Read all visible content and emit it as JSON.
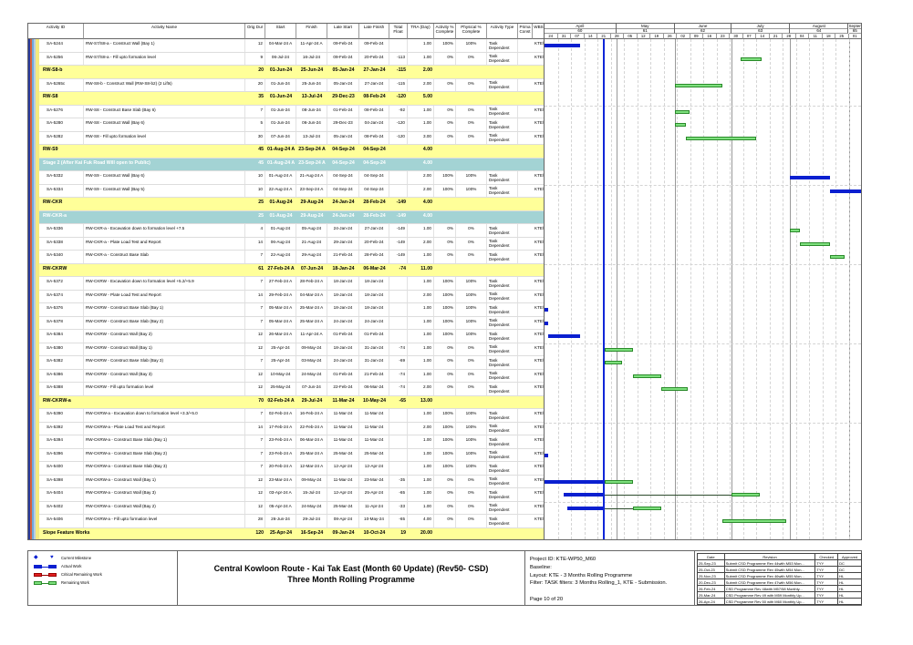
{
  "columns": [
    "Activity ID",
    "Activity Name",
    "Orig Dur",
    "Start",
    "Finish",
    "Late Start",
    "Late Finish",
    "Total Float",
    "TRA (Day)",
    "Activity % Complete",
    "Physical % Complete",
    "Activity Type",
    "Prima Const",
    "WBS"
  ],
  "rows": [
    {
      "kind": "task",
      "id": "SA-5244",
      "name": "RW-S7/S8-a - Construct Wall (Bay 1)",
      "dur": "12",
      "start": "04-Mar-24 A",
      "finish": "11-Apr-24 A",
      "ls": "09-Feb-24",
      "lf": "09-Feb-24",
      "tf": "",
      "tra": "1.00",
      "act": "100%",
      "phys": "100%",
      "type": "Task Dependent",
      "wbs": "KTE\\"
    },
    {
      "kind": "task",
      "id": "SA-5256",
      "name": "RW-S7/S8-a - Fill upto formation level",
      "dur": "9",
      "start": "06-Jul-24",
      "finish": "16-Jul-24",
      "ls": "09-Feb-24",
      "lf": "20-Feb-24",
      "tf": "-113",
      "tra": "1.00",
      "act": "0%",
      "phys": "0%",
      "type": "Task Dependent",
      "wbs": "KTE\\"
    },
    {
      "kind": "grp",
      "id": "RW-S8-b",
      "dur": "20",
      "start": "01-Jun-24",
      "finish": "25-Jun-24",
      "ls": "05-Jan-24",
      "lf": "27-Jan-24",
      "tf": "-115",
      "tra": "2.00"
    },
    {
      "kind": "task",
      "id": "SA-5265c",
      "name": "RW-S8-b - Construct Wall (RW-S8-b2) (2 Lifts)",
      "dur": "20",
      "start": "01-Jun-24",
      "finish": "25-Jun-24",
      "ls": "05-Jan-24",
      "lf": "27-Jan-24",
      "tf": "-115",
      "tra": "2.00",
      "act": "0%",
      "phys": "0%",
      "type": "Task Dependent",
      "wbs": "KTE\\"
    },
    {
      "kind": "grp",
      "id": "RW-S8",
      "dur": "35",
      "start": "01-Jun-24",
      "finish": "13-Jul-24",
      "ls": "29-Dec-23",
      "lf": "08-Feb-24",
      "tf": "-120",
      "tra": "5.00"
    },
    {
      "kind": "task",
      "id": "SA-5276",
      "name": "RW-S8 - Construct Base Slab (Bay 6)",
      "dur": "7",
      "start": "01-Jun-24",
      "finish": "08-Jun-24",
      "ls": "01-Feb-24",
      "lf": "08-Feb-24",
      "tf": "-92",
      "tra": "1.00",
      "act": "0%",
      "phys": "0%",
      "type": "Task Dependent",
      "wbs": "KTE\\"
    },
    {
      "kind": "task",
      "id": "SA-5280",
      "name": "RW-S8 - Construct Wall (Bay 6)",
      "dur": "5",
      "start": "01-Jun-24",
      "finish": "06-Jun-24",
      "ls": "29-Dec-23",
      "lf": "04-Jan-24",
      "tf": "-120",
      "tra": "1.00",
      "act": "0%",
      "phys": "0%",
      "type": "Task Dependent",
      "wbs": "KTE\\"
    },
    {
      "kind": "task",
      "id": "SA-5282",
      "name": "RW-S8 - Fill upto formation level",
      "dur": "30",
      "start": "07-Jun-24",
      "finish": "13-Jul-24",
      "ls": "05-Jan-24",
      "lf": "08-Feb-24",
      "tf": "-120",
      "tra": "3.00",
      "act": "0%",
      "phys": "0%",
      "type": "Task Dependent",
      "wbs": "KTE\\"
    },
    {
      "kind": "grp",
      "id": "RW-S9",
      "dur": "45",
      "start": "01-Aug-24 A",
      "finish": "23-Sep-24 A",
      "ls": "04-Sep-24",
      "lf": "04-Sep-24",
      "tf": "",
      "tra": "4.00"
    },
    {
      "kind": "teal",
      "id": "Stage 2 (After Kai Fuk Road Will open to Public)",
      "dur": "45",
      "start": "01-Aug-24 A",
      "finish": "23-Sep-24 A",
      "ls": "04-Sep-24",
      "lf": "04-Sep-24",
      "tf": "",
      "tra": "4.00"
    },
    {
      "kind": "task",
      "id": "SA-5332",
      "name": "RW-S9 - Construct Wall (Bay 6)",
      "dur": "10",
      "start": "01-Aug-24 A",
      "finish": "21-Aug-24 A",
      "ls": "04-Sep-24",
      "lf": "04-Sep-24",
      "tf": "",
      "tra": "2.00",
      "act": "100%",
      "phys": "100%",
      "type": "Task Dependent",
      "wbs": "KTE\\"
    },
    {
      "kind": "task",
      "id": "SA-5334",
      "name": "RW-S9 - Construct Wall (Bay 5)",
      "dur": "10",
      "start": "22-Aug-24 A",
      "finish": "23-Sep-24 A",
      "ls": "04-Sep-24",
      "lf": "04-Sep-24",
      "tf": "",
      "tra": "2.00",
      "act": "100%",
      "phys": "100%",
      "type": "Task Dependent",
      "wbs": "KTE\\"
    },
    {
      "kind": "grp",
      "id": "RW-CKR",
      "dur": "25",
      "start": "01-Aug-24",
      "finish": "29-Aug-24",
      "ls": "24-Jan-24",
      "lf": "28-Feb-24",
      "tf": "-149",
      "tra": "4.00"
    },
    {
      "kind": "teal",
      "id": "RW-CKR-a",
      "dur": "25",
      "start": "01-Aug-24",
      "finish": "29-Aug-24",
      "ls": "24-Jan-24",
      "lf": "28-Feb-24",
      "tf": "-149",
      "tra": "4.00"
    },
    {
      "kind": "task",
      "id": "SA-5336",
      "name": "RW-CKR-a - Excavation down to formation level +7.5",
      "dur": "4",
      "start": "01-Aug-24",
      "finish": "05-Aug-24",
      "ls": "24-Jan-24",
      "lf": "27-Jan-24",
      "tf": "-149",
      "tra": "1.00",
      "act": "0%",
      "phys": "0%",
      "type": "Task Dependent",
      "wbs": "KTE\\"
    },
    {
      "kind": "task",
      "id": "SA-5338",
      "name": "RW-CKR-a - Plate Load Test and Report",
      "dur": "14",
      "start": "06-Aug-24",
      "finish": "21-Aug-24",
      "ls": "29-Jan-24",
      "lf": "20-Feb-24",
      "tf": "-149",
      "tra": "2.00",
      "act": "0%",
      "phys": "0%",
      "type": "Task Dependent",
      "wbs": "KTE\\"
    },
    {
      "kind": "task",
      "id": "SA-5340",
      "name": "RW-CKR-a - Construct Base Slab",
      "dur": "7",
      "start": "22-Aug-24",
      "finish": "29-Aug-24",
      "ls": "21-Feb-24",
      "lf": "28-Feb-24",
      "tf": "-149",
      "tra": "1.00",
      "act": "0%",
      "phys": "0%",
      "type": "Task Dependent",
      "wbs": "KTE\\"
    },
    {
      "kind": "grp",
      "id": "RW-CKRW",
      "dur": "61",
      "start": "27-Feb-24 A",
      "finish": "07-Jun-24",
      "ls": "18-Jan-24",
      "lf": "06-Mar-24",
      "tf": "-74",
      "tra": "11.00"
    },
    {
      "kind": "task",
      "id": "SA-5372",
      "name": "RW-CKRW - Excavation down to formation level +5.2/+5.9",
      "dur": "7",
      "start": "27-Feb-24 A",
      "finish": "28-Feb-24 A",
      "ls": "18-Jan-24",
      "lf": "18-Jan-24",
      "tf": "",
      "tra": "1.00",
      "act": "100%",
      "phys": "100%",
      "type": "Task Dependent",
      "wbs": "KTE\\"
    },
    {
      "kind": "task",
      "id": "SA-5374",
      "name": "RW-CKRW - Plate Load Test and Report",
      "dur": "14",
      "start": "29-Feb-24 A",
      "finish": "04-Mar-24 A",
      "ls": "18-Jan-24",
      "lf": "18-Jan-24",
      "tf": "",
      "tra": "2.00",
      "act": "100%",
      "phys": "100%",
      "type": "Task Dependent",
      "wbs": "KTE\\"
    },
    {
      "kind": "task",
      "id": "SA-5376",
      "name": "RW-CKRW - Construct Base Slab (Bay 1)",
      "dur": "7",
      "start": "05-Mar-24 A",
      "finish": "25-Mar-24 A",
      "ls": "18-Jan-24",
      "lf": "18-Jan-24",
      "tf": "",
      "tra": "1.00",
      "act": "100%",
      "phys": "100%",
      "type": "Task Dependent",
      "wbs": "KTE\\"
    },
    {
      "kind": "task",
      "id": "SA-5378",
      "name": "RW-CKRW - Construct Base Slab (Bay 2)",
      "dur": "7",
      "start": "05-Mar-24 A",
      "finish": "25-Mar-24 A",
      "ls": "24-Jan-24",
      "lf": "24-Jan-24",
      "tf": "",
      "tra": "1.00",
      "act": "100%",
      "phys": "100%",
      "type": "Task Dependent",
      "wbs": "KTE\\"
    },
    {
      "kind": "task",
      "id": "SA-5384",
      "name": "RW-CKRW - Construct Wall (Bay 2)",
      "dur": "12",
      "start": "26-Mar-24 A",
      "finish": "11-Apr-24 A",
      "ls": "01-Feb-24",
      "lf": "01-Feb-24",
      "tf": "",
      "tra": "1.00",
      "act": "100%",
      "phys": "100%",
      "type": "Task Dependent",
      "wbs": "KTE\\"
    },
    {
      "kind": "task",
      "id": "SA-5380",
      "name": "RW-CKRW - Construct Wall (Bay 1)",
      "dur": "12",
      "start": "25-Apr-24",
      "finish": "09-May-24",
      "ls": "18-Jan-24",
      "lf": "31-Jan-24",
      "tf": "-74",
      "tra": "1.00",
      "act": "0%",
      "phys": "0%",
      "type": "Task Dependent",
      "wbs": "KTE\\"
    },
    {
      "kind": "task",
      "id": "SA-5382",
      "name": "RW-CKRW - Construct Base Slab (Bay 3)",
      "dur": "7",
      "start": "25-Apr-24",
      "finish": "03-May-24",
      "ls": "24-Jan-24",
      "lf": "31-Jan-24",
      "tf": "-69",
      "tra": "1.00",
      "act": "0%",
      "phys": "0%",
      "type": "Task Dependent",
      "wbs": "KTE\\"
    },
    {
      "kind": "task",
      "id": "SA-5386",
      "name": "RW-CKRW - Construct Wall (Bay 3)",
      "dur": "12",
      "start": "10-May-24",
      "finish": "24-May-24",
      "ls": "01-Feb-24",
      "lf": "21-Feb-24",
      "tf": "-74",
      "tra": "1.00",
      "act": "0%",
      "phys": "0%",
      "type": "Task Dependent",
      "wbs": "KTE\\"
    },
    {
      "kind": "task",
      "id": "SA-5388",
      "name": "RW-CKRW - Fill upto formation level",
      "dur": "12",
      "start": "25-May-24",
      "finish": "07-Jun-24",
      "ls": "22-Feb-24",
      "lf": "06-Mar-24",
      "tf": "-74",
      "tra": "2.00",
      "act": "0%",
      "phys": "0%",
      "type": "Task Dependent",
      "wbs": "KTE\\"
    },
    {
      "kind": "grp",
      "id": "RW-CKRW-a",
      "dur": "70",
      "start": "02-Feb-24 A",
      "finish": "29-Jul-24",
      "ls": "11-Mar-24",
      "lf": "10-May-24",
      "tf": "-65",
      "tra": "13.00"
    },
    {
      "kind": "task",
      "id": "SA-5390",
      "name": "RW-CKRW-a - Excavation down to formation level +3.3/+5.0",
      "dur": "7",
      "start": "02-Feb-24 A",
      "finish": "16-Feb-24 A",
      "ls": "11-Mar-24",
      "lf": "11-Mar-24",
      "tf": "",
      "tra": "1.00",
      "act": "100%",
      "phys": "100%",
      "type": "Task Dependent",
      "wbs": "KTE\\"
    },
    {
      "kind": "task",
      "id": "SA-5392",
      "name": "RW-CKRW-a - Plate Load Test and Report",
      "dur": "14",
      "start": "17-Feb-24 A",
      "finish": "22-Feb-24 A",
      "ls": "11-Mar-24",
      "lf": "11-Mar-24",
      "tf": "",
      "tra": "2.00",
      "act": "100%",
      "phys": "100%",
      "type": "Task Dependent",
      "wbs": "KTE\\"
    },
    {
      "kind": "task",
      "id": "SA-5394",
      "name": "RW-CKRW-a - Construct Base Slab (Bay 1)",
      "dur": "7",
      "start": "23-Feb-24 A",
      "finish": "06-Mar-24 A",
      "ls": "11-Mar-24",
      "lf": "11-Mar-24",
      "tf": "",
      "tra": "1.00",
      "act": "100%",
      "phys": "100%",
      "type": "Task Dependent",
      "wbs": "KTE\\"
    },
    {
      "kind": "task",
      "id": "SA-5396",
      "name": "RW-CKRW-a - Construct Base Slab (Bay 2)",
      "dur": "7",
      "start": "23-Feb-24 A",
      "finish": "25-Mar-24 A",
      "ls": "25-Mar-24",
      "lf": "25-Mar-24",
      "tf": "",
      "tra": "1.00",
      "act": "100%",
      "phys": "100%",
      "type": "Task Dependent",
      "wbs": "KTE\\"
    },
    {
      "kind": "task",
      "id": "SA-5400",
      "name": "RW-CKRW-a - Construct Base Slab (Bay 3)",
      "dur": "7",
      "start": "20-Feb-24 A",
      "finish": "12-Mar-24 A",
      "ls": "12-Apr-24",
      "lf": "12-Apr-24",
      "tf": "",
      "tra": "1.00",
      "act": "100%",
      "phys": "100%",
      "type": "Task Dependent",
      "wbs": "KTE\\"
    },
    {
      "kind": "task",
      "id": "SA-5398",
      "name": "RW-CKRW-a - Construct Wall (Bay 1)",
      "dur": "12",
      "start": "23-Mar-24 A",
      "finish": "09-May-24",
      "ls": "11-Mar-24",
      "lf": "23-Mar-24",
      "tf": "-35",
      "tra": "1.00",
      "act": "0%",
      "phys": "0%",
      "type": "Task Dependent",
      "wbs": "KTE\\"
    },
    {
      "kind": "task",
      "id": "SA-5404",
      "name": "RW-CKRW-a - Construct Wall (Bay 3)",
      "dur": "12",
      "start": "03-Apr-24 A",
      "finish": "15-Jul-24",
      "ls": "12-Apr-24",
      "lf": "25-Apr-24",
      "tf": "-65",
      "tra": "1.00",
      "act": "0%",
      "phys": "0%",
      "type": "Task Dependent",
      "wbs": "KTE\\"
    },
    {
      "kind": "task",
      "id": "SA-5402",
      "name": "RW-CKRW-a - Construct Wall (Bay 2)",
      "dur": "12",
      "start": "05-Apr-24 A",
      "finish": "24-May-24",
      "ls": "25-Mar-24",
      "lf": "11-Apr-24",
      "tf": "-33",
      "tra": "1.00",
      "act": "0%",
      "phys": "0%",
      "type": "Task Dependent",
      "wbs": "KTE\\"
    },
    {
      "kind": "task",
      "id": "SA-5406",
      "name": "RW-CKRW-a - Fill upto formation level",
      "dur": "28",
      "start": "26-Jun-24",
      "finish": "29-Jul-24",
      "ls": "08-Apr-24",
      "lf": "10-May-24",
      "tf": "-65",
      "tra": "4.00",
      "act": "0%",
      "phys": "0%",
      "type": "Task Dependent",
      "wbs": "KTE\\"
    },
    {
      "kind": "grp",
      "id": "Slope Feature Works",
      "dur": "120",
      "start": "25-Apr-24",
      "finish": "16-Sep-24",
      "ls": "09-Jan-24",
      "lf": "10-Oct-24",
      "tf": "19",
      "tra": "20.00"
    }
  ],
  "timeline": {
    "months": [
      {
        "name": "April",
        "num": "60"
      },
      {
        "name": "May",
        "num": "61"
      },
      {
        "name": "June",
        "num": "62"
      },
      {
        "name": "July",
        "num": "63"
      },
      {
        "name": "August",
        "num": "64"
      },
      {
        "name": "Septem",
        "num": "65"
      }
    ],
    "weeks": [
      "24",
      "31",
      "07",
      "14",
      "21",
      "28",
      "05",
      "12",
      "19",
      "26",
      "02",
      "09",
      "16",
      "23",
      "30",
      "07",
      "14",
      "21",
      "28",
      "04",
      "11",
      "18",
      "25",
      "01"
    ]
  },
  "colors": {
    "actual": "#0a1fd0",
    "remaining": "#7ee07e",
    "critical": "#e02020",
    "summary_row": "#ffff99",
    "wbs_row": "#a3d3d4",
    "data_date": "#1026d8"
  },
  "legend": {
    "milestone": "Current Milestone",
    "actual": "Actual Work",
    "critical": "Critical Remaining Work",
    "remaining": "Remaining Work"
  },
  "title": {
    "line1": "Central Kowloon Route - Kai Tak East (Month 60 Update) (Rev50- CSD)",
    "line2": "Three Month Rolling Programme"
  },
  "info": {
    "project": "Project ID: KTE-WP50_M60",
    "baseline": "Baseline:",
    "layout": "Layout: KTE - 3 Months Rolling Programme",
    "filter": "Filter: TASK filters: 3 Months Rolling_1, KTE - Submission.",
    "page": "Page 10 of 20"
  },
  "revisions": {
    "headers": [
      "Date",
      "Revision",
      "Checked",
      "Approved"
    ],
    "rows": [
      [
        "25-Sep-23",
        "Submit CSD Programme Rev 44with M53 Mon...",
        "TYY",
        "DC"
      ],
      [
        "25-Oct-23",
        "Submit CSD Programme Rev 45with M54 Mon...",
        "TYY",
        "DC"
      ],
      [
        "25-Nov-23",
        "Submit CSD Programme Rev 46with M55 Mon...",
        "TYY",
        "HL"
      ],
      [
        "20-Dec-23",
        "Submit CSD Programme Rev 47with M56 Mon...",
        "TYY",
        "HL"
      ],
      [
        "26-Feb-24",
        "CSD Programme Rev 48with M57/58 Monthly...",
        "TYY",
        "HL"
      ],
      [
        "25-Mar-24",
        "CSD Programme Rev 49 with M59 Monthly Up...",
        "TYY",
        "HL"
      ],
      [
        "26-Apr-24",
        "CSD Programme Rev 50 with M60 Monthly Up...",
        "TYY",
        "HL"
      ]
    ]
  }
}
